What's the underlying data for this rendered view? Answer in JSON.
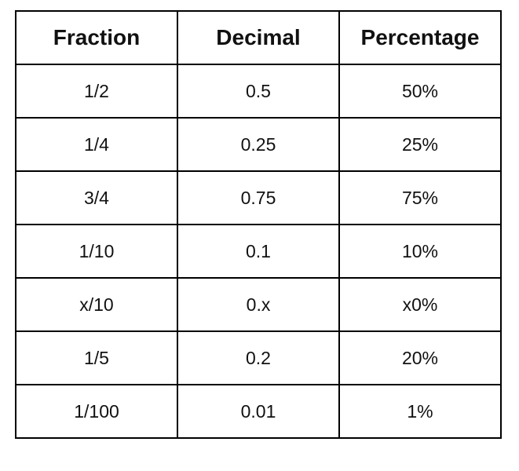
{
  "table": {
    "header": [
      "Fraction",
      "Decimal",
      "Percentage"
    ],
    "rows": [
      [
        "1/2",
        "0.5",
        "50%"
      ],
      [
        "1/4",
        "0.25",
        "25%"
      ],
      [
        "3/4",
        "0.75",
        "75%"
      ],
      [
        "1/10",
        "0.1",
        "10%"
      ],
      [
        "x/10",
        "0.x",
        "x0%"
      ],
      [
        "1/5",
        "0.2",
        "20%"
      ],
      [
        "1/100",
        "0.01",
        "1%"
      ]
    ]
  }
}
